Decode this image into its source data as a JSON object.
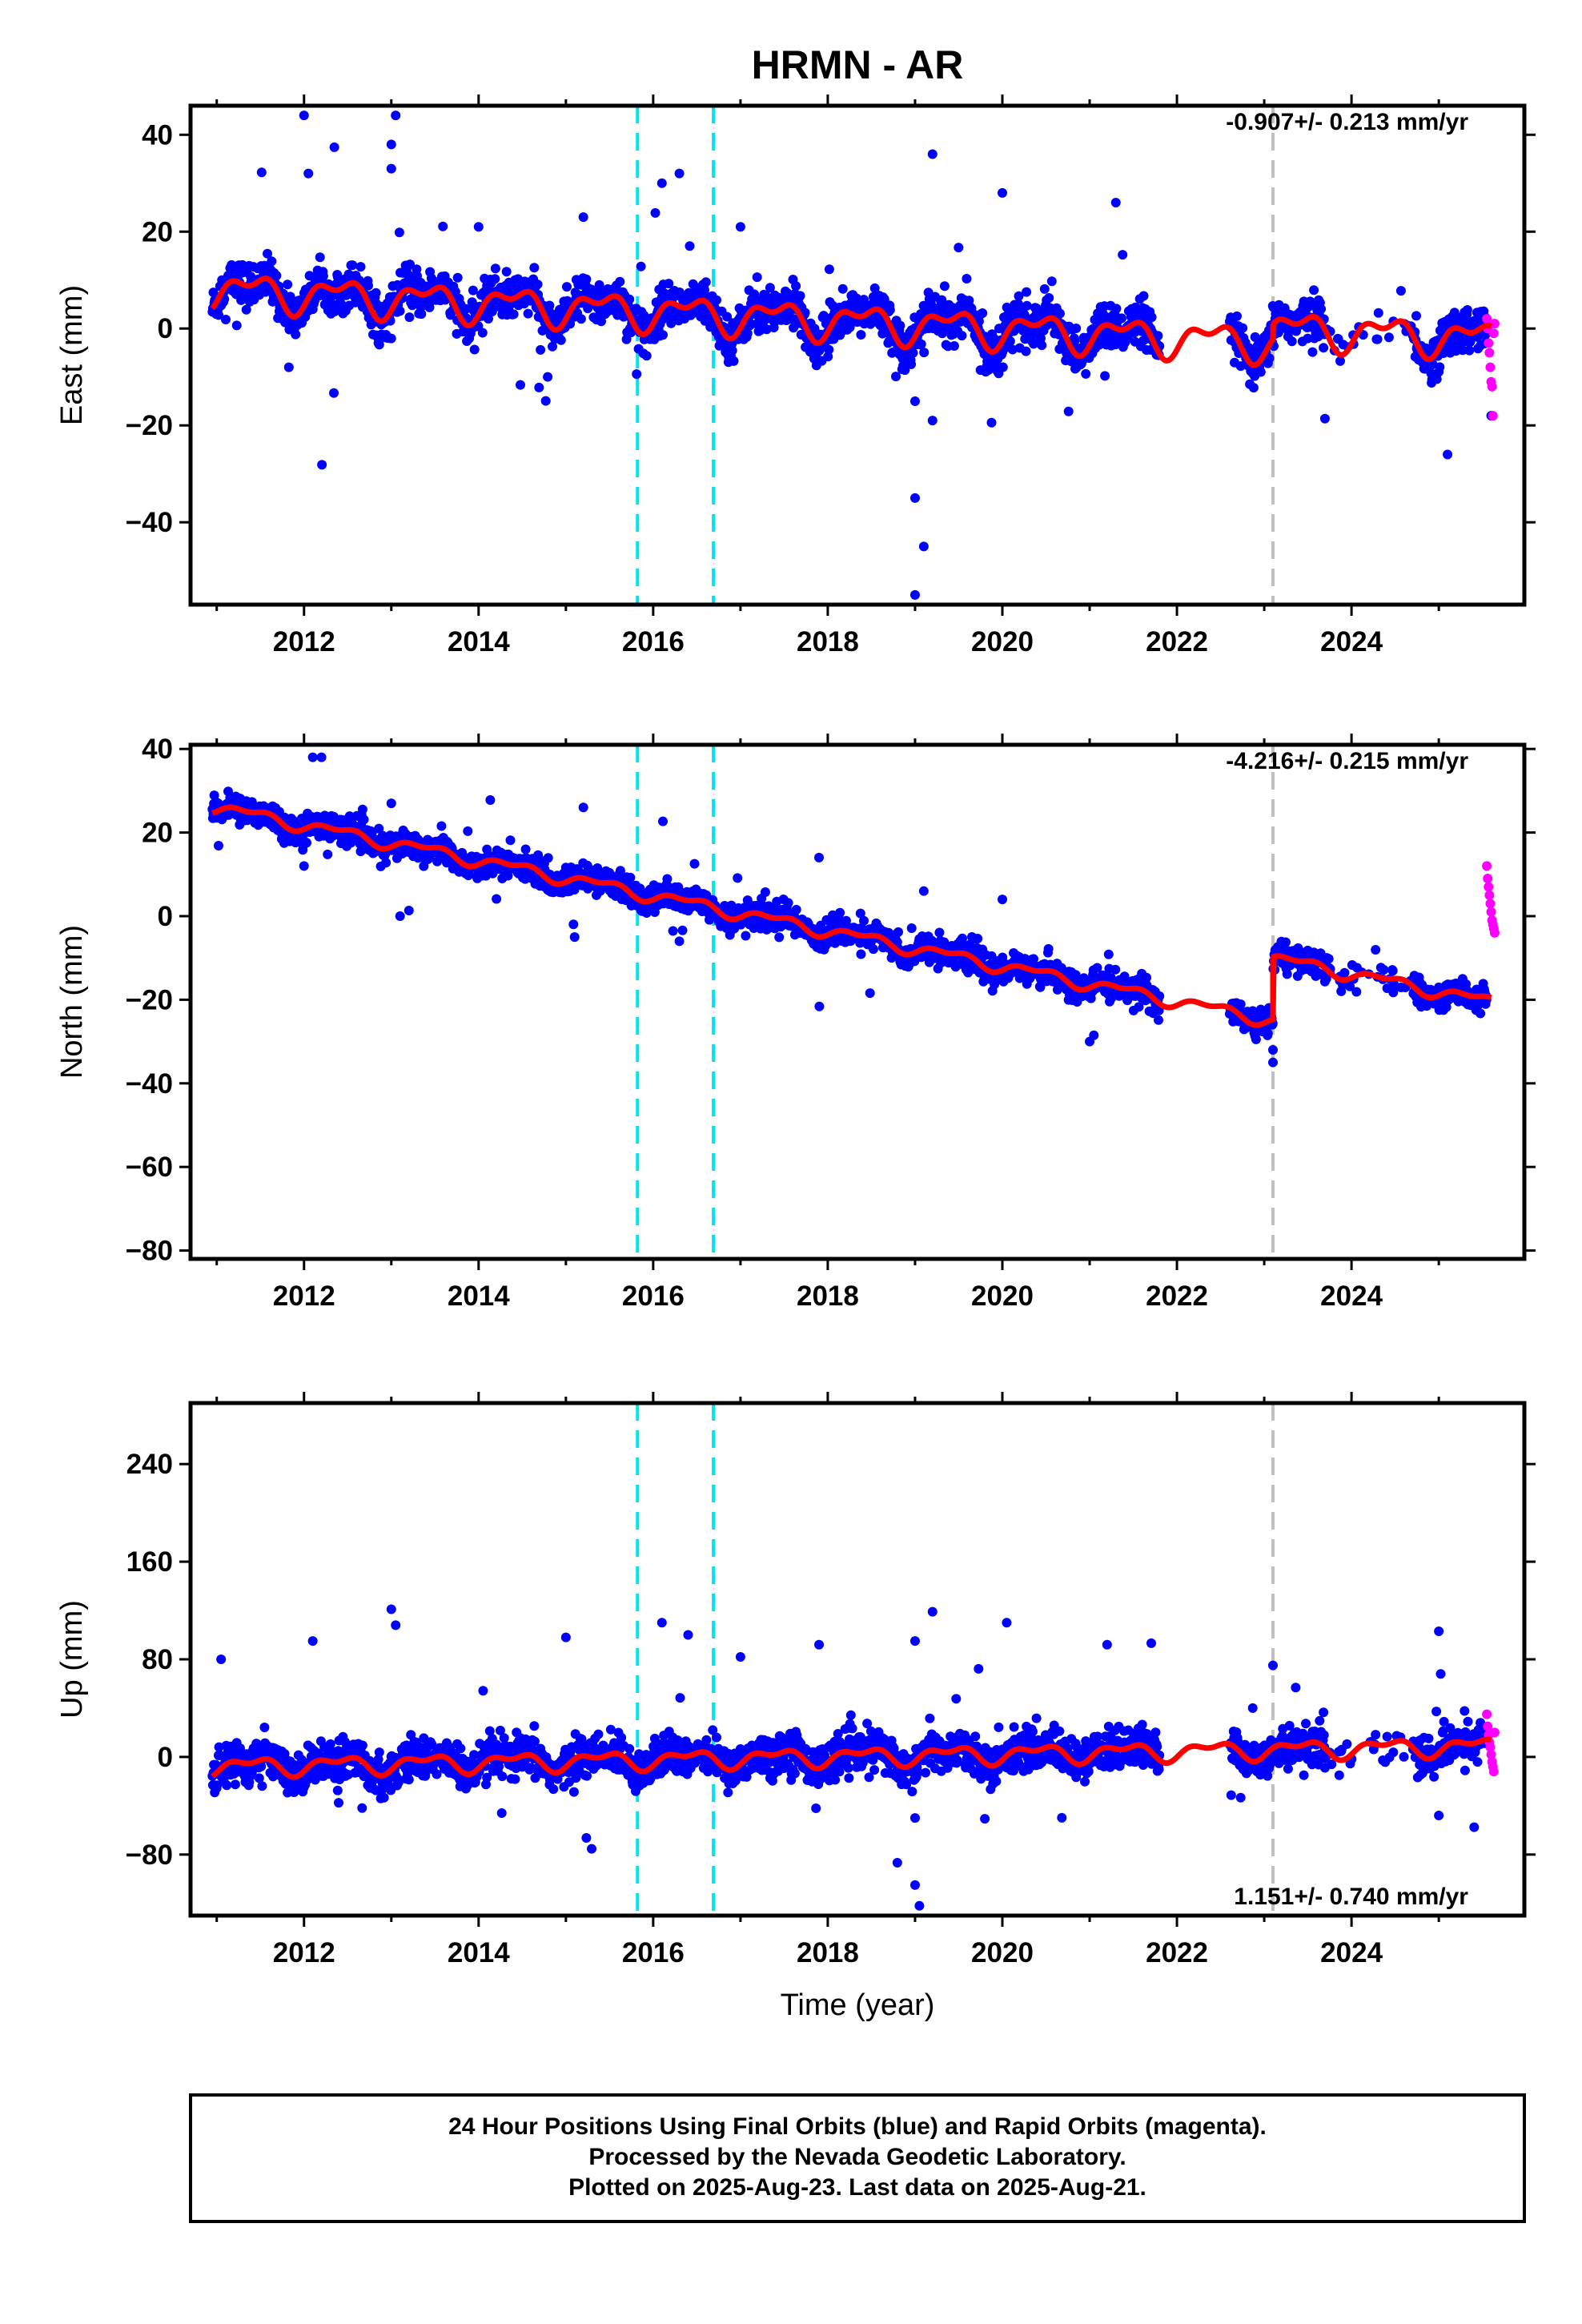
{
  "title": "HRMN - AR",
  "x_label": "Time (year)",
  "caption": {
    "line1": "24 Hour Positions Using Final Orbits (blue) and Rapid Orbits (magenta).",
    "line2": "Processed by the Nevada Geodetic Laboratory.",
    "line3": "Plotted on 2025-Aug-23. Last data on 2025-Aug-21."
  },
  "colors": {
    "final_orbits": "#0000ff",
    "rapid_orbits": "#ff00ff",
    "model_fit": "#ff0000",
    "equipment_change": "#00e5ee",
    "earthquake": "#c0c0c0"
  },
  "chart_data": [
    {
      "type": "scatter",
      "ylabel": "East (mm)",
      "rate_label": "-0.907+/- 0.213 mm/yr",
      "xlim": [
        2010.7,
        2025.98
      ],
      "ylim": [
        -57,
        46
      ],
      "x_ticks": [
        2012,
        2014,
        2016,
        2018,
        2020,
        2022,
        2024
      ],
      "y_ticks": [
        40,
        20,
        0,
        -20,
        -40
      ],
      "vlines": {
        "equipment_change": [
          2015.82,
          2016.69
        ],
        "earthquake": [
          2023.1
        ]
      },
      "offset_year": 2023.1,
      "series": [
        {
          "id": "final",
          "trend": {
            "x0": 2011.0,
            "y0": 8.0,
            "slope": -0.907,
            "offset": 3.0
          },
          "seasonal": 3.0,
          "noise": 2.2,
          "x_range": [
            2010.95,
            2025.55
          ],
          "gap": [
            2021.8,
            2022.6
          ]
        },
        {
          "id": "rapid",
          "x_range": [
            2025.55,
            2025.64
          ],
          "y_values": [
            2,
            0,
            -3,
            -5,
            -8,
            -11,
            -12,
            -18,
            -1,
            1
          ]
        }
      ],
      "outliers": [
        [
          2012.0,
          44
        ],
        [
          2013.05,
          44
        ],
        [
          2013.0,
          38
        ],
        [
          2013.0,
          33
        ],
        [
          2012.05,
          32
        ],
        [
          2016.3,
          32
        ],
        [
          2016.1,
          30
        ],
        [
          2019.2,
          36
        ],
        [
          2019.0,
          -15
        ],
        [
          2019.2,
          -19
        ],
        [
          2019.0,
          -35
        ],
        [
          2019.1,
          -45
        ],
        [
          2019.0,
          -55
        ],
        [
          2025.1,
          -26
        ],
        [
          2025.6,
          -18
        ],
        [
          2021.3,
          26
        ],
        [
          2020.0,
          28
        ],
        [
          2015.2,
          23
        ],
        [
          2017.0,
          21
        ],
        [
          2014.0,
          21
        ]
      ]
    },
    {
      "type": "scatter",
      "ylabel": "North (mm)",
      "rate_label": "-4.216+/- 0.215 mm/yr",
      "xlim": [
        2010.7,
        2025.98
      ],
      "ylim": [
        -82,
        41
      ],
      "x_ticks": [
        2012,
        2014,
        2016,
        2018,
        2020,
        2022,
        2024
      ],
      "y_ticks": [
        40,
        20,
        0,
        -20,
        -40,
        -60,
        -80
      ],
      "vlines": {
        "equipment_change": [
          2015.82,
          2016.69
        ],
        "earthquake": [
          2023.1
        ]
      },
      "offset_year": 2023.1,
      "series": [
        {
          "id": "final",
          "trend": {
            "x0": 2011.0,
            "y0": 26.0,
            "slope": -4.216,
            "offset": 15.0
          },
          "seasonal": 1.2,
          "noise": 1.6,
          "x_range": [
            2010.95,
            2025.55
          ],
          "gap": [
            2021.8,
            2022.6
          ]
        },
        {
          "id": "rapid",
          "x_range": [
            2025.55,
            2025.64
          ],
          "y_values": [
            12,
            9,
            7,
            5,
            3,
            1,
            -1,
            -2,
            -3,
            -4
          ]
        }
      ],
      "outliers": [
        [
          2012.1,
          38
        ],
        [
          2012.2,
          38
        ],
        [
          2015.2,
          26
        ],
        [
          2013.0,
          27
        ],
        [
          2012.0,
          12
        ],
        [
          2013.1,
          0
        ],
        [
          2017.9,
          14
        ],
        [
          2019.1,
          6
        ],
        [
          2020.0,
          4
        ],
        [
          2021.0,
          -30
        ],
        [
          2023.1,
          -35
        ],
        [
          2023.1,
          -32
        ],
        [
          2015.1,
          -5
        ],
        [
          2016.3,
          -6
        ]
      ]
    },
    {
      "type": "scatter",
      "ylabel": "Up (mm)",
      "rate_label": "1.151+/- 0.740 mm/yr",
      "xlim": [
        2010.7,
        2025.98
      ],
      "ylim": [
        -130,
        290
      ],
      "x_ticks": [
        2012,
        2014,
        2016,
        2018,
        2020,
        2022,
        2024
      ],
      "y_ticks": [
        240,
        160,
        80,
        0,
        -80
      ],
      "vlines": {
        "equipment_change": [
          2015.82,
          2016.69
        ],
        "earthquake": [
          2023.1
        ]
      },
      "offset_year": 2023.1,
      "series": [
        {
          "id": "final",
          "trend": {
            "x0": 2011.0,
            "y0": -8.0,
            "slope": 1.151,
            "offset": 0.0
          },
          "seasonal": 6.0,
          "noise": 8.0,
          "x_range": [
            2010.95,
            2025.55
          ],
          "gap": [
            2021.8,
            2022.6
          ]
        },
        {
          "id": "rapid",
          "x_range": [
            2025.55,
            2025.64
          ],
          "y_values": [
            35,
            25,
            18,
            12,
            8,
            2,
            -4,
            -8,
            -12,
            20
          ]
        }
      ],
      "outliers": [
        [
          2013.0,
          121
        ],
        [
          2013.05,
          108
        ],
        [
          2019.2,
          119
        ],
        [
          2019.0,
          95
        ],
        [
          2020.05,
          110
        ],
        [
          2016.1,
          110
        ],
        [
          2016.4,
          100
        ],
        [
          2015.0,
          98
        ],
        [
          2025.0,
          103
        ],
        [
          2021.2,
          92
        ],
        [
          2017.9,
          92
        ],
        [
          2017.0,
          82
        ],
        [
          2011.05,
          80
        ],
        [
          2019.0,
          -105
        ],
        [
          2019.05,
          -122
        ],
        [
          2019.0,
          -50
        ],
        [
          2025.0,
          -48
        ],
        [
          2012.1,
          95
        ],
        [
          2023.1,
          75
        ]
      ]
    }
  ]
}
